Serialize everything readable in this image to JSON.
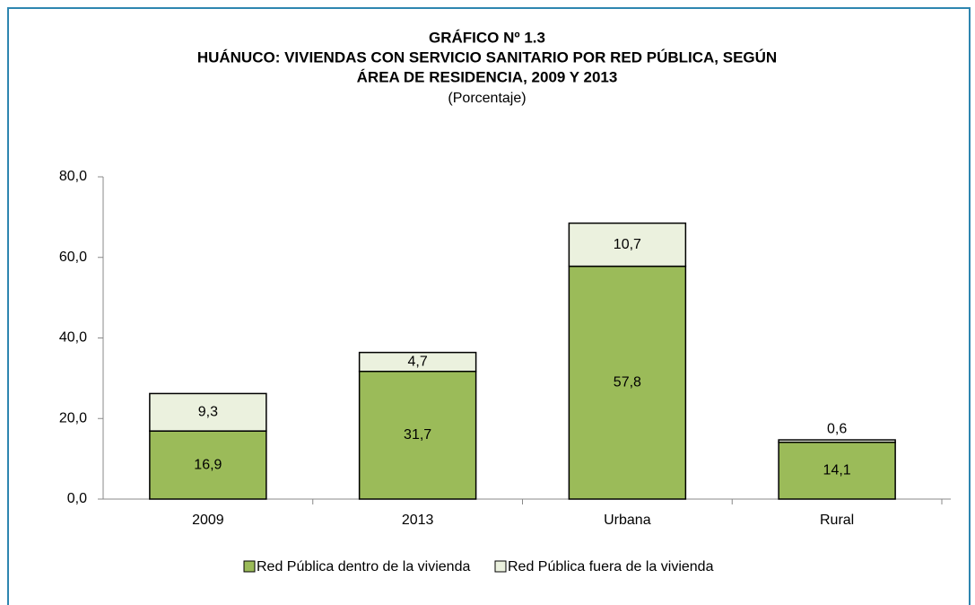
{
  "chart_data": {
    "type": "stacked_bar",
    "title": [
      "GRÁFICO Nº 1.3",
      "HUÁNUCO: VIVIENDAS CON SERVICIO SANITARIO POR RED PÚBLICA, SEGÚN",
      "ÁREA DE RESIDENCIA,  2009 Y 2013"
    ],
    "subtitle": "(Porcentaje)",
    "categories": [
      "2009",
      "2013",
      "Urbana",
      "Rural"
    ],
    "series": [
      {
        "name": "Red Pública dentro de la vivienda",
        "color": "#9bbb59",
        "values": [
          16.9,
          31.7,
          57.8,
          14.1
        ],
        "value_labels": [
          "16,9",
          "31,7",
          "57,8",
          "14,1"
        ]
      },
      {
        "name": "Red Pública fuera de la vivienda",
        "color": "#ebf1de",
        "values": [
          9.3,
          4.7,
          10.7,
          0.6
        ],
        "value_labels": [
          "9,3",
          "4,7",
          "10,7",
          "0,6"
        ]
      }
    ],
    "ylim": [
      0,
      80
    ],
    "yticks": [
      {
        "value": 0,
        "label": "0,0"
      },
      {
        "value": 20,
        "label": "20,0"
      },
      {
        "value": 40,
        "label": "40,0"
      },
      {
        "value": 60,
        "label": "60,0"
      },
      {
        "value": 80,
        "label": "80,0"
      }
    ],
    "legend": "bottom"
  }
}
